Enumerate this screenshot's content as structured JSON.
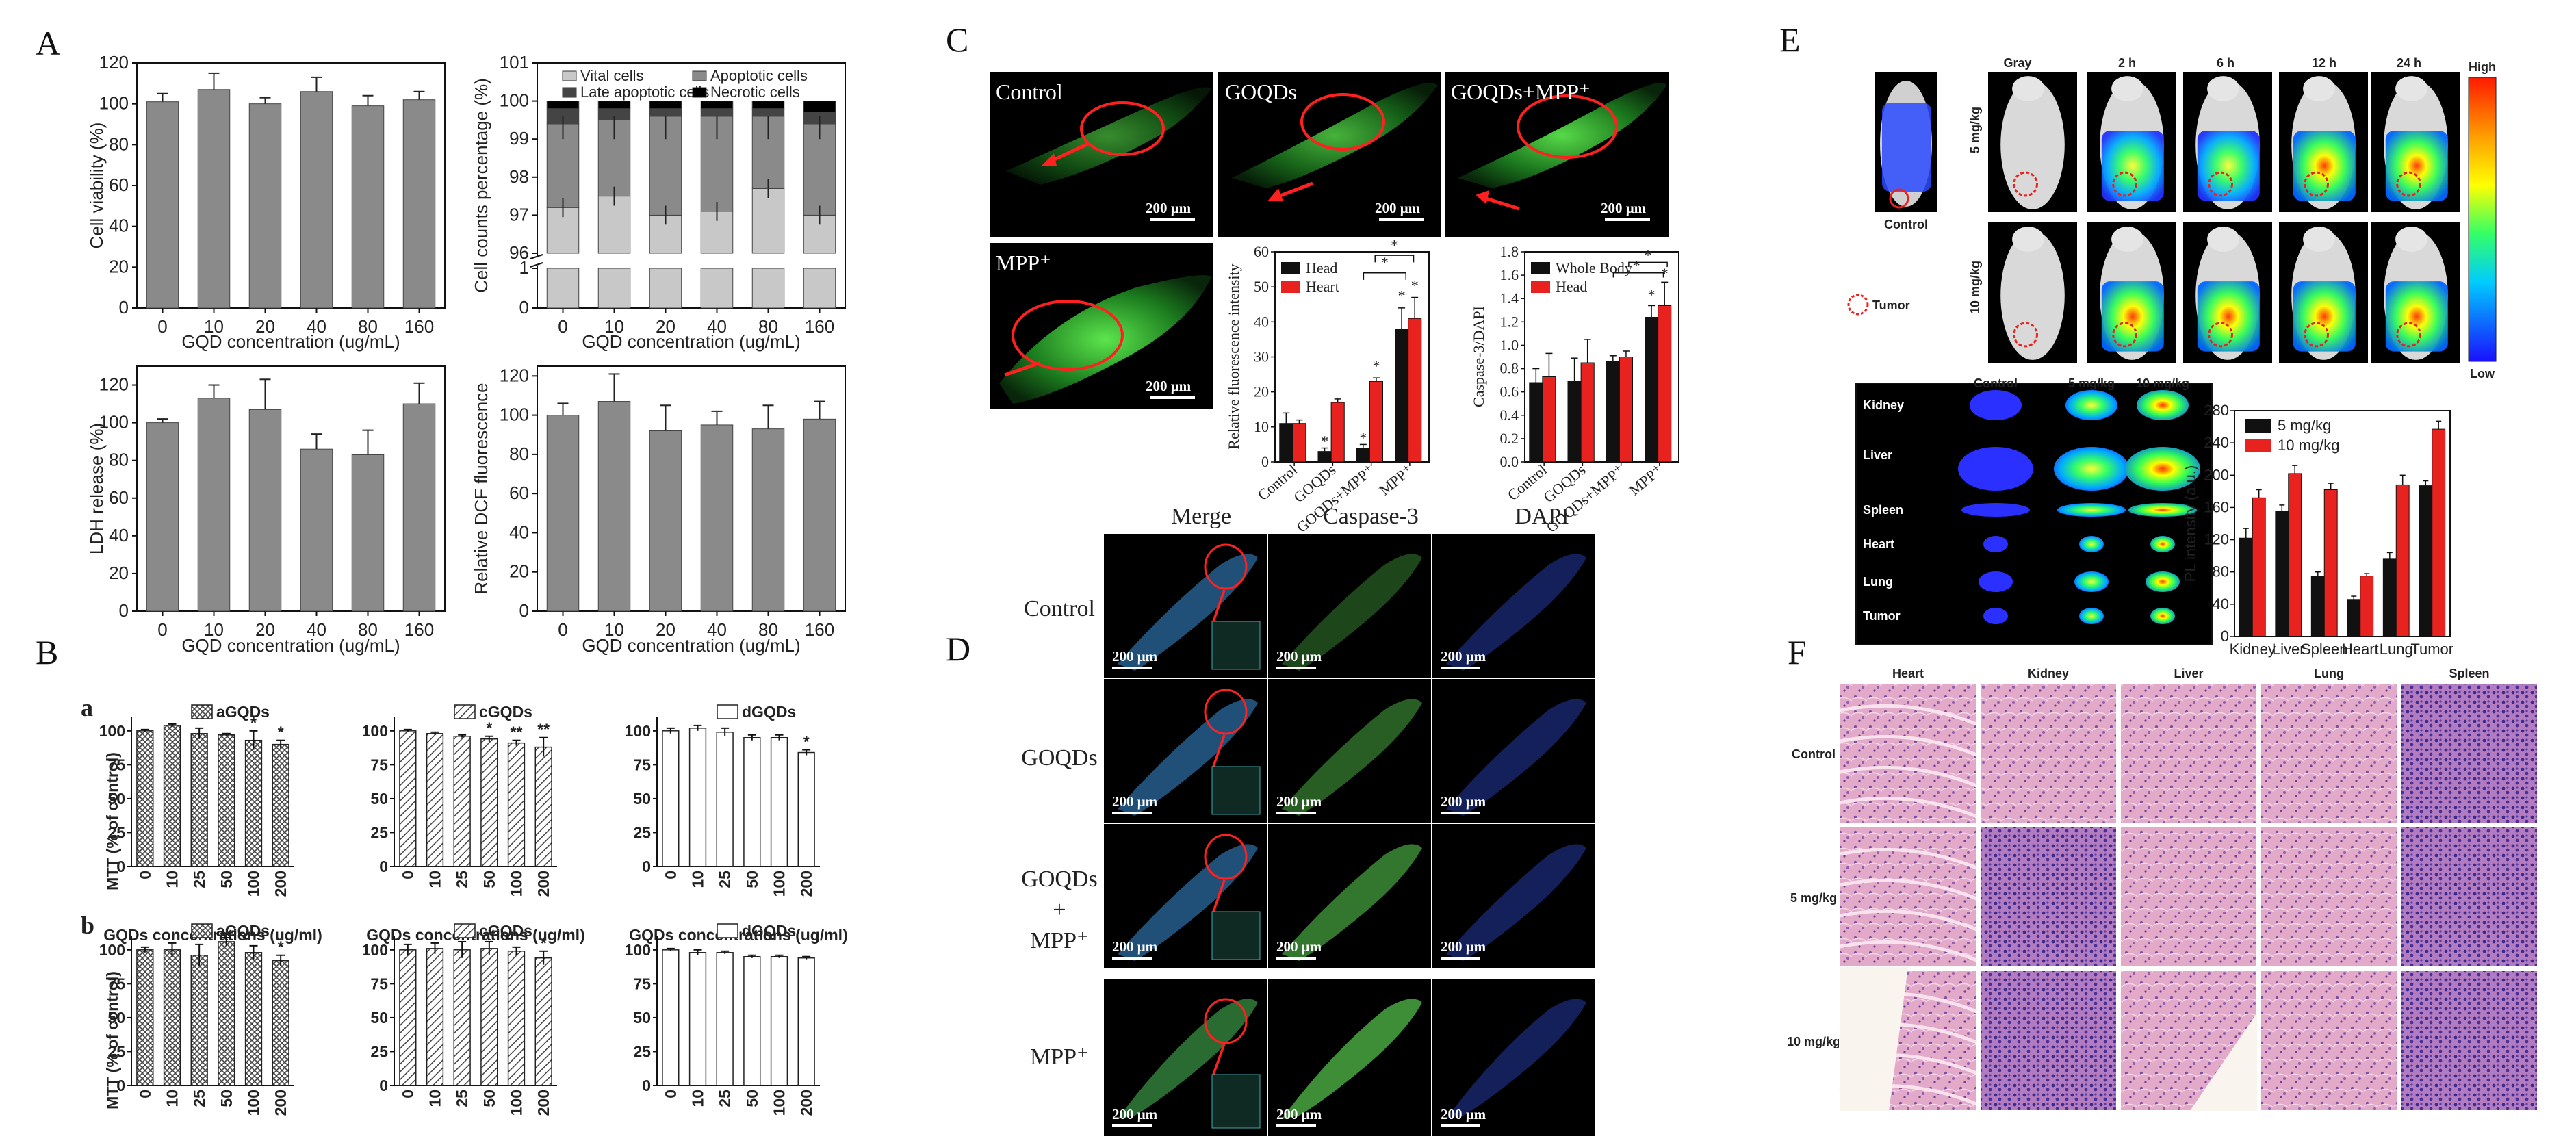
{
  "panels": {
    "A": "A",
    "B": "B",
    "C": "C",
    "D": "D",
    "E": "E",
    "F": "F"
  },
  "panelA": {
    "xlabel": "GQD concentration (ug/mL)",
    "categories": [
      "0",
      "10",
      "20",
      "40",
      "80",
      "160"
    ],
    "viability_ylabel": "Cell viability (%)",
    "counts_ylabel": "Cell counts percentage (%)",
    "ldh_ylabel": "LDH release (%)",
    "dcf_ylabel": "Relative DCF fluorescence",
    "legend": [
      "Vital cells",
      "Apoptotic cells",
      "Late apoptotic cells",
      "Necrotic cells"
    ]
  },
  "panelB": {
    "sub_a": "a",
    "sub_b": "b",
    "xlabel": "GQDs concentrations (ug/ml)",
    "ylabel": "MTT (% of control)",
    "categories": [
      "0",
      "10",
      "25",
      "50",
      "100",
      "200"
    ],
    "legends": [
      "aGQDs",
      "cGQDs",
      "dGQDs"
    ]
  },
  "panelC": {
    "images": {
      "control": "Control",
      "goqds": "GOQDs",
      "goqds_mpp": "GOQDs+MPP⁺",
      "mpp": "MPP⁺"
    },
    "scale": "200 μm",
    "chart1": {
      "ylabel": "Relative fluorescence intensity",
      "legend": [
        "Head",
        "Heart"
      ],
      "categories": [
        "Control",
        "GOQDs",
        "GOQDs+MPP⁺",
        "MPP⁺"
      ]
    },
    "chart2": {
      "ylabel": "Caspase-3/DAPI",
      "legend": [
        "Whole Body",
        "Head"
      ],
      "categories": [
        "Control",
        "GOQDs",
        "GOQDs+MPP⁺",
        "MPP⁺"
      ]
    },
    "sig": "*"
  },
  "panelD": {
    "columns": [
      "Merge",
      "Caspase-3",
      "DAPI"
    ],
    "rows": [
      "Control",
      "GOQDs",
      "GOQDs",
      "+",
      "MPP⁺",
      "MPP⁺"
    ],
    "scale": "200 μm"
  },
  "panelE": {
    "time_labels": [
      "Gray",
      "2 h",
      "6 h",
      "12 h",
      "24 h"
    ],
    "dose_5": "5 mg/kg",
    "dose_10": "10 mg/kg",
    "control": "Control",
    "tumor": "Tumor",
    "colorbar_high": "High",
    "colorbar_low": "Low",
    "organ_cols": [
      "Control",
      "5 mg/kg",
      "10 mg/kg"
    ],
    "organs": [
      "Kidney",
      "Liver",
      "Spleen",
      "Heart",
      "Lung",
      "Tumor"
    ],
    "chart_ylabel": "PL intensity (a.u.)",
    "chart_legend": [
      "5 mg/kg",
      "10 mg/kg"
    ]
  },
  "panelF": {
    "columns": [
      "Heart",
      "Kidney",
      "Liver",
      "Lung",
      "Spleen"
    ],
    "rows": [
      "Control",
      "5 mg/kg",
      "10 mg/kg"
    ]
  },
  "colors": {
    "gray_bar": "#8a8a8a",
    "red": "#e8231f",
    "black": "#111111",
    "hatch": "#555555",
    "fluor_green": "#3fd13a",
    "he_pink": "#d9a3c4",
    "he_purple": "#7a4f9e"
  },
  "chart_data": [
    {
      "type": "bar",
      "panel": "A-top-left",
      "categories": [
        "0",
        "10",
        "20",
        "40",
        "80",
        "160"
      ],
      "values": [
        101,
        107,
        100,
        106,
        99,
        102
      ],
      "errors": [
        4,
        8,
        3,
        7,
        5,
        4
      ],
      "xlabel": "GQD concentration (ug/mL)",
      "ylabel": "Cell viability (%)",
      "ylim": [
        0,
        120
      ],
      "yticks": [
        0,
        20,
        40,
        60,
        80,
        100,
        120
      ]
    },
    {
      "type": "bar",
      "stacked": true,
      "panel": "A-top-right",
      "categories": [
        "0",
        "10",
        "20",
        "40",
        "80",
        "160"
      ],
      "series": [
        {
          "name": "Vital cells",
          "values": [
            97.2,
            97.5,
            97.0,
            97.1,
            97.7,
            97.0
          ]
        },
        {
          "name": "Apoptotic cells",
          "values": [
            2.2,
            2.0,
            2.6,
            2.5,
            1.9,
            2.4
          ]
        },
        {
          "name": "Late apoptotic cells",
          "values": [
            0.4,
            0.3,
            0.2,
            0.2,
            0.2,
            0.3
          ]
        },
        {
          "name": "Necrotic cells",
          "values": [
            0.2,
            0.2,
            0.2,
            0.2,
            0.2,
            0.3
          ]
        }
      ],
      "xlabel": "GQD concentration (ug/mL)",
      "ylabel": "Cell counts percentage (%)",
      "yticks_upper": [
        96,
        97,
        98,
        99,
        100,
        101
      ],
      "yticks_lower": [
        0,
        1
      ]
    },
    {
      "type": "bar",
      "panel": "A-bottom-left",
      "categories": [
        "0",
        "10",
        "20",
        "40",
        "80",
        "160"
      ],
      "values": [
        100,
        113,
        107,
        86,
        83,
        110
      ],
      "errors": [
        2,
        7,
        16,
        8,
        13,
        11
      ],
      "xlabel": "GQD concentration (ug/mL)",
      "ylabel": "LDH release (%)",
      "ylim": [
        0,
        130
      ],
      "yticks": [
        0,
        20,
        40,
        60,
        80,
        100,
        120
      ]
    },
    {
      "type": "bar",
      "panel": "A-bottom-right",
      "categories": [
        "0",
        "10",
        "20",
        "40",
        "80",
        "160"
      ],
      "values": [
        100,
        107,
        92,
        95,
        93,
        98
      ],
      "errors": [
        6,
        14,
        13,
        7,
        12,
        9
      ],
      "xlabel": "GQD concentration (ug/mL)",
      "ylabel": "Relative DCF fluorescence",
      "ylim": [
        0,
        125
      ],
      "yticks": [
        0,
        20,
        40,
        60,
        80,
        100,
        120
      ]
    },
    {
      "type": "bar",
      "panel": "B-a",
      "categories": [
        "0",
        "10",
        "25",
        "50",
        "100",
        "200"
      ],
      "series": [
        {
          "name": "aGQDs",
          "values": [
            100,
            104,
            98,
            97,
            93,
            90
          ],
          "errors": [
            1,
            1,
            4,
            1,
            7,
            3
          ],
          "sig": [
            "",
            "",
            "",
            "",
            "*",
            "*"
          ]
        },
        {
          "name": "cGQDs",
          "values": [
            100,
            98,
            96,
            94,
            91,
            88
          ],
          "errors": [
            1,
            1,
            1,
            2,
            2,
            7
          ],
          "sig": [
            "",
            "",
            "",
            "*",
            "**",
            "**"
          ]
        },
        {
          "name": "dGQDs",
          "values": [
            100,
            102,
            99,
            95,
            95,
            84
          ],
          "errors": [
            2,
            2,
            3,
            2,
            2,
            2
          ],
          "sig": [
            "",
            "",
            "",
            "",
            "",
            "*"
          ]
        }
      ],
      "xlabel": "GQDs concentrations (ug/ml)",
      "ylabel": "MTT (% of control)",
      "ylim": [
        0,
        110
      ],
      "yticks": [
        0,
        25,
        50,
        75,
        100
      ]
    },
    {
      "type": "bar",
      "panel": "B-b",
      "categories": [
        "0",
        "10",
        "25",
        "50",
        "100",
        "200"
      ],
      "series": [
        {
          "name": "aGQDs",
          "values": [
            100,
            100,
            96,
            106,
            98,
            92
          ],
          "errors": [
            2,
            5,
            8,
            3,
            5,
            4
          ],
          "sig": [
            "",
            "",
            "",
            "",
            "",
            "*"
          ]
        },
        {
          "name": "cGQDs",
          "values": [
            100,
            101,
            100,
            101,
            99,
            94
          ],
          "errors": [
            4,
            4,
            6,
            5,
            3,
            5
          ],
          "sig": [
            "",
            "",
            "",
            "",
            "",
            "*"
          ]
        },
        {
          "name": "dGQDs",
          "values": [
            100,
            98,
            98,
            95,
            95,
            94
          ],
          "errors": [
            1,
            2,
            1,
            1,
            1,
            1
          ],
          "sig": [
            "",
            "",
            "",
            "",
            "",
            ""
          ]
        }
      ],
      "xlabel": "GQDs concentrations (ug/ml)",
      "ylabel": "MTT (% of control)",
      "ylim": [
        0,
        110
      ],
      "yticks": [
        0,
        25,
        50,
        75,
        100
      ]
    },
    {
      "type": "bar",
      "panel": "C-1",
      "categories": [
        "Control",
        "GOQDs",
        "GOQDs+MPP⁺",
        "MPP⁺"
      ],
      "series": [
        {
          "name": "Head",
          "values": [
            11,
            3,
            4,
            38
          ],
          "errors": [
            3,
            1,
            1,
            6
          ]
        },
        {
          "name": "Heart",
          "values": [
            11,
            17,
            23,
            41
          ],
          "errors": [
            1,
            1,
            1,
            6
          ]
        }
      ],
      "ylabel": "Relative fluorescence intensity",
      "ylim": [
        0,
        60
      ],
      "yticks": [
        0,
        10,
        20,
        30,
        40,
        50,
        60
      ]
    },
    {
      "type": "bar",
      "panel": "C-2",
      "categories": [
        "Control",
        "GOQDs",
        "GOQDs+MPP⁺",
        "MPP⁺"
      ],
      "series": [
        {
          "name": "Whole Body",
          "values": [
            0.68,
            0.69,
            0.86,
            1.24
          ],
          "errors": [
            0.12,
            0.2,
            0.05,
            0.1
          ]
        },
        {
          "name": "Head",
          "values": [
            0.73,
            0.85,
            0.9,
            1.34
          ],
          "errors": [
            0.2,
            0.2,
            0.05,
            0.2
          ]
        }
      ],
      "ylabel": "Caspase-3/DAPI",
      "ylim": [
        0,
        1.8
      ],
      "yticks": [
        0,
        0.2,
        0.4,
        0.6,
        0.8,
        1.0,
        1.2,
        1.4,
        1.6,
        1.8
      ]
    },
    {
      "type": "bar",
      "panel": "E",
      "categories": [
        "Kidney",
        "Liver",
        "Spleen",
        "Heart",
        "Lung",
        "Tumor"
      ],
      "series": [
        {
          "name": "5 mg/kg",
          "values": [
            122,
            155,
            75,
            46,
            96,
            187
          ],
          "errors": [
            12,
            8,
            5,
            4,
            8,
            6
          ]
        },
        {
          "name": "10 mg/kg",
          "values": [
            172,
            202,
            182,
            75,
            188,
            257
          ],
          "errors": [
            10,
            10,
            8,
            3,
            12,
            10
          ]
        }
      ],
      "ylabel": "PL intensity (a.u.)",
      "ylim": [
        0,
        280
      ],
      "yticks": [
        0,
        40,
        80,
        120,
        160,
        200,
        240,
        280
      ]
    }
  ]
}
